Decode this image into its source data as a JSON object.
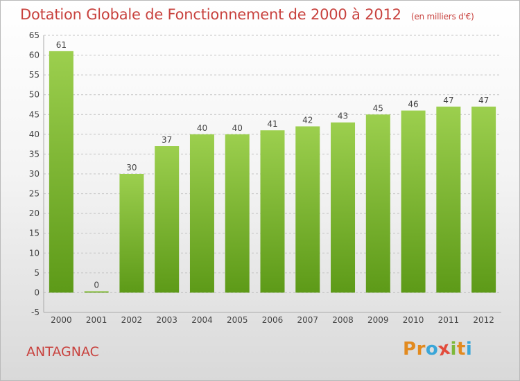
{
  "title": "Dotation Globale de Fonctionnement de 2000 à 2012",
  "unit": "(en milliers d'€)",
  "city": "ANTAGNAC",
  "logo": {
    "letters": [
      "P",
      "r",
      "o",
      "x",
      "i",
      "t",
      "i"
    ],
    "colors": [
      "#e28a1f",
      "#e28a1f",
      "#3aa6d8",
      "#e24b3b",
      "#7db83a",
      "#e28a1f",
      "#3aa6d8"
    ]
  },
  "colors": {
    "bar_light": "#9ccf4e",
    "bar_dark": "#5d9a18",
    "title": "#c8423e"
  },
  "chart_data": {
    "type": "bar",
    "categories": [
      "2000",
      "2001",
      "2002",
      "2003",
      "2004",
      "2005",
      "2006",
      "2007",
      "2008",
      "2009",
      "2010",
      "2011",
      "2012"
    ],
    "values": [
      61,
      0,
      30,
      37,
      40,
      40,
      41,
      42,
      43,
      45,
      46,
      47,
      47
    ],
    "ylim": [
      -5,
      65
    ],
    "yticks": [
      -5,
      0,
      5,
      10,
      15,
      20,
      25,
      30,
      35,
      40,
      45,
      50,
      55,
      60,
      65
    ],
    "grid": true
  }
}
